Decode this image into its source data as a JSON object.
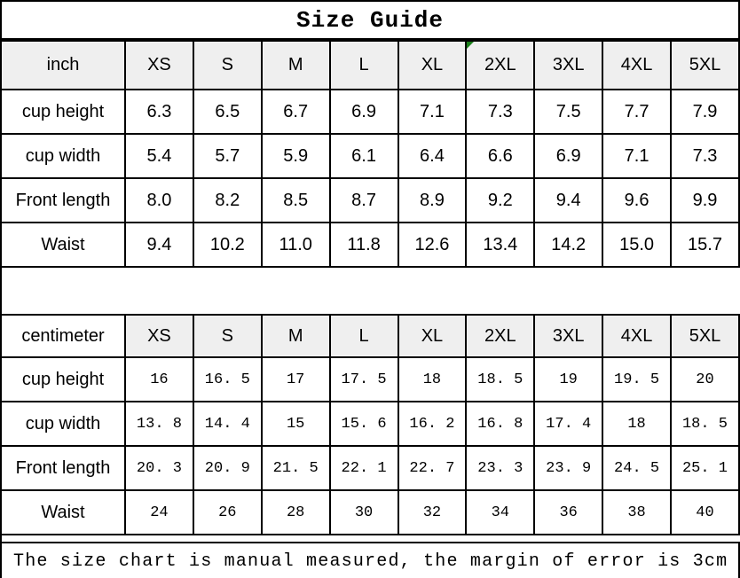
{
  "title": "Size Guide",
  "footer_note": "The size chart is manual measured, the margin of error is 3cm",
  "colors": {
    "background": "#ffffff",
    "border": "#000000",
    "header_bg": "#efefef",
    "flag_green": "#1a7f1a",
    "text": "#000000"
  },
  "tables": [
    {
      "unit_label": "inch",
      "unit_header_shaded": true,
      "flagged_column": "2XL",
      "sizes": [
        "XS",
        "S",
        "M",
        "L",
        "XL",
        "2XL",
        "3XL",
        "4XL",
        "5XL"
      ],
      "rows": [
        {
          "label": "cup height",
          "values": [
            "6.3",
            "6.5",
            "6.7",
            "6.9",
            "7.1",
            "7.3",
            "7.5",
            "7.7",
            "7.9"
          ]
        },
        {
          "label": "cup width",
          "values": [
            "5.4",
            "5.7",
            "5.9",
            "6.1",
            "6.4",
            "6.6",
            "6.9",
            "7.1",
            "7.3"
          ]
        },
        {
          "label": "Front length",
          "values": [
            "8.0",
            "8.2",
            "8.5",
            "8.7",
            "8.9",
            "9.2",
            "9.4",
            "9.6",
            "9.9"
          ]
        },
        {
          "label": "Waist",
          "values": [
            "9.4",
            "10.2",
            "11.0",
            "11.8",
            "12.6",
            "13.4",
            "14.2",
            "15.0",
            "15.7"
          ]
        }
      ]
    },
    {
      "unit_label": "centimeter",
      "unit_header_shaded": false,
      "flagged_column": null,
      "sizes": [
        "XS",
        "S",
        "M",
        "L",
        "XL",
        "2XL",
        "3XL",
        "4XL",
        "5XL"
      ],
      "rows": [
        {
          "label": "cup height",
          "values": [
            "16",
            "16. 5",
            "17",
            "17. 5",
            "18",
            "18. 5",
            "19",
            "19. 5",
            "20"
          ]
        },
        {
          "label": "cup width",
          "values": [
            "13. 8",
            "14. 4",
            "15",
            "15. 6",
            "16. 2",
            "16. 8",
            "17. 4",
            "18",
            "18. 5"
          ]
        },
        {
          "label": "Front length",
          "values": [
            "20. 3",
            "20. 9",
            "21. 5",
            "22. 1",
            "22. 7",
            "23. 3",
            "23. 9",
            "24. 5",
            "25. 1"
          ]
        },
        {
          "label": "Waist",
          "values": [
            "24",
            "26",
            "28",
            "30",
            "32",
            "34",
            "36",
            "38",
            "40"
          ]
        }
      ]
    }
  ]
}
